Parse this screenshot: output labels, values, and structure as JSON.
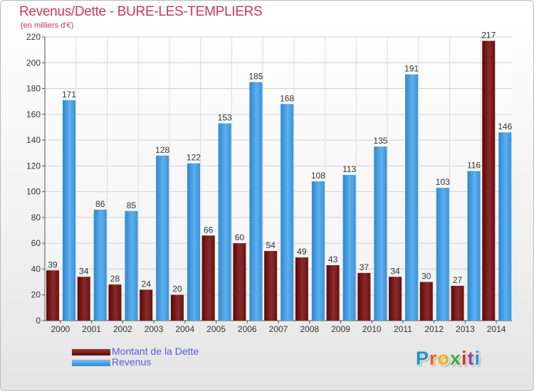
{
  "title": "Revenus/Dette - BURE-LES-TEMPLIERS",
  "subtitle": "(en milliers d'€)",
  "logo": {
    "letters": [
      "P",
      "r",
      "o",
      "x",
      "i",
      "t",
      "i"
    ],
    "colors": [
      "#1e90c8",
      "#e65b1a",
      "#f0b21a",
      "#3cae3c",
      "#d2302c",
      "#8e3fa0",
      "#1e90c8"
    ]
  },
  "chart_data": {
    "type": "bar",
    "title": "Revenus/Dette - BURE-LES-TEMPLIERS",
    "ylabel": "(en milliers d'€)",
    "xlabel": "",
    "ylim": [
      0,
      220
    ],
    "yticks": [
      0,
      20,
      40,
      60,
      80,
      100,
      120,
      140,
      160,
      180,
      200,
      220
    ],
    "grid": true,
    "categories": [
      "2000",
      "2001",
      "2002",
      "2003",
      "2004",
      "2005",
      "2006",
      "2007",
      "2008",
      "2009",
      "2010",
      "2011",
      "2012",
      "2013",
      "2014"
    ],
    "series": [
      {
        "name": "Montant de la Dette",
        "color": "#7a1e1e",
        "values": [
          39,
          34,
          28,
          24,
          20,
          66,
          60,
          54,
          49,
          43,
          37,
          34,
          30,
          27,
          217
        ]
      },
      {
        "name": "Revenus",
        "color": "#4aa3e6",
        "values": [
          171,
          86,
          85,
          128,
          122,
          153,
          185,
          168,
          108,
          113,
          135,
          191,
          103,
          116,
          146
        ]
      }
    ],
    "legend": "bottom-left"
  }
}
